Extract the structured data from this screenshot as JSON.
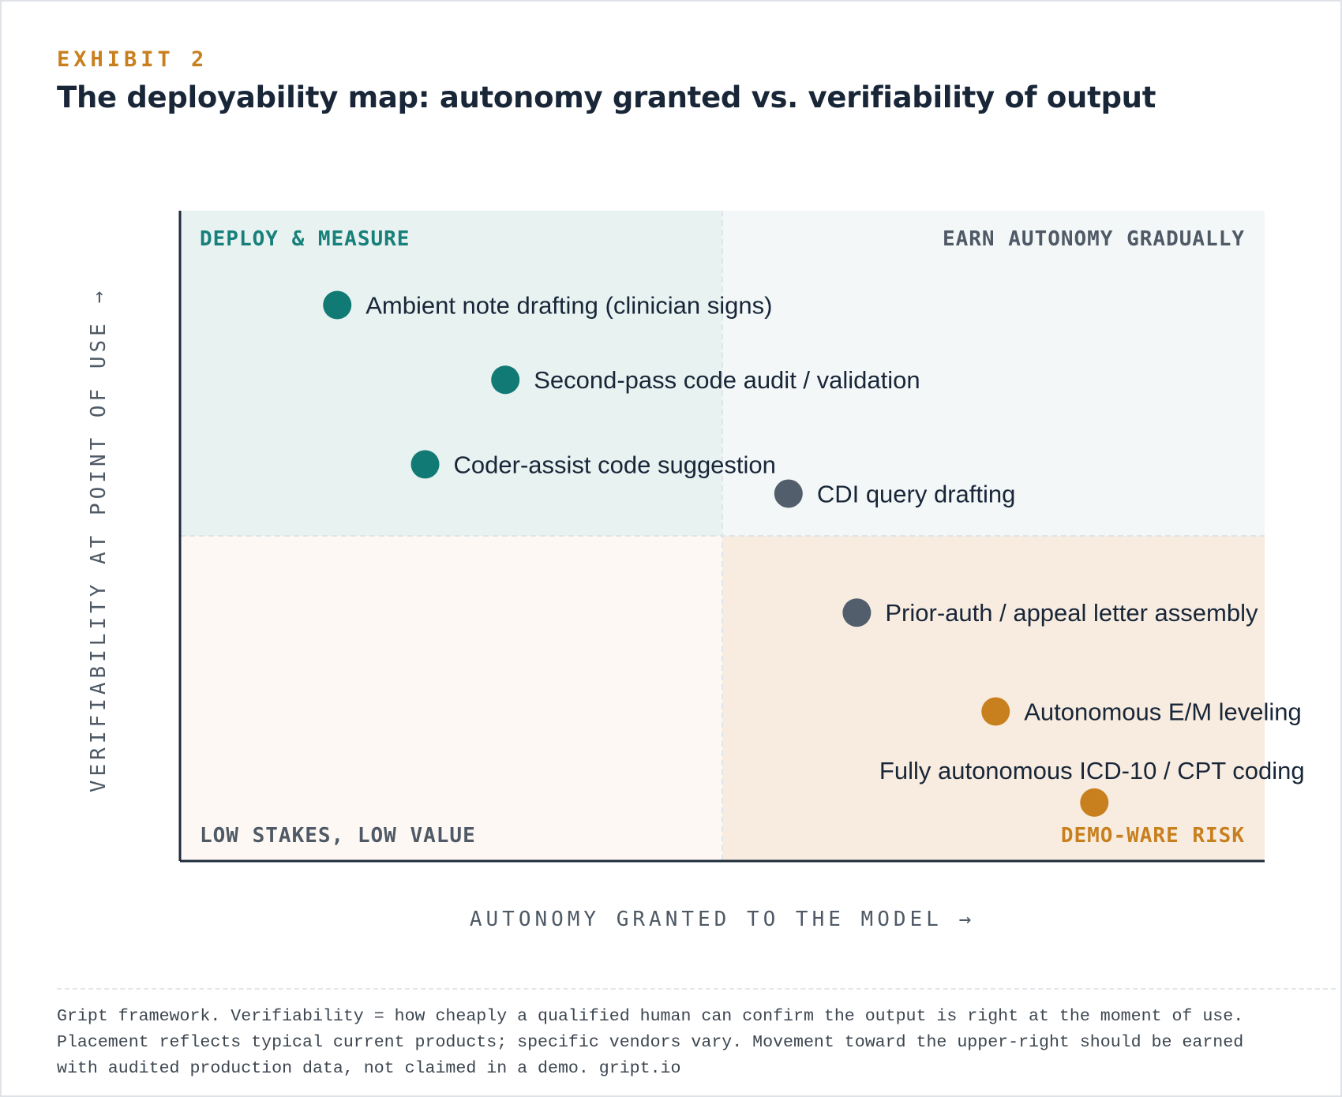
{
  "header": {
    "exhibit": "EXHIBIT 2",
    "title": "The deployability map: autonomy granted vs. verifiability of output"
  },
  "chart_data": {
    "type": "scatter",
    "xlabel": "AUTONOMY GRANTED TO THE MODEL →",
    "ylabel": "VERIFIABILITY AT POINT OF USE →",
    "xlim": [
      0,
      1
    ],
    "ylim": [
      0,
      1
    ],
    "quadrants": [
      {
        "name": "DEPLOY & MEASURE",
        "position": "top-left",
        "fill": "#e7f2f1",
        "label_color": "#17807a"
      },
      {
        "name": "EARN AUTONOMY GRADUALLY",
        "position": "top-right",
        "fill": "#f3f7f8",
        "label_color": "#4f5a66"
      },
      {
        "name": "LOW STAKES, LOW VALUE",
        "position": "bottom-left",
        "fill": "#fdf8f3",
        "label_color": "#4f5a66"
      },
      {
        "name": "DEMO-WARE RISK",
        "position": "bottom-right",
        "fill": "#f8ece0",
        "label_color": "#c8801f"
      }
    ],
    "points": [
      {
        "label": "Ambient note drafting (clinician signs)",
        "x": 0.145,
        "y": 0.855,
        "color": "#127a74",
        "label_side": "right"
      },
      {
        "label": "Second-pass code audit / validation",
        "x": 0.3,
        "y": 0.74,
        "color": "#127a74",
        "label_side": "right"
      },
      {
        "label": "Coder-assist code suggestion",
        "x": 0.226,
        "y": 0.61,
        "color": "#127a74",
        "label_side": "right"
      },
      {
        "label": "CDI query drafting",
        "x": 0.561,
        "y": 0.565,
        "color": "#525e6b",
        "label_side": "right"
      },
      {
        "label": "Prior-auth / appeal letter assembly",
        "x": 0.624,
        "y": 0.382,
        "color": "#525e6b",
        "label_side": "right"
      },
      {
        "label": "Autonomous E/M leveling",
        "x": 0.752,
        "y": 0.23,
        "color": "#c8801f",
        "label_side": "right"
      },
      {
        "label": "Fully autonomous ICD-10 / CPT coding",
        "x": 0.843,
        "y": 0.09,
        "color": "#c8801f",
        "label_side": "above"
      }
    ],
    "grid": false
  },
  "footnote": {
    "lines": [
      "Gript framework. Verifiability = how cheaply a qualified human can confirm the output is right at the moment of use.",
      "Placement reflects typical current products; specific vendors vary. Movement toward the upper-right should be earned",
      "with audited production data, not claimed in a demo. gript.io"
    ]
  }
}
